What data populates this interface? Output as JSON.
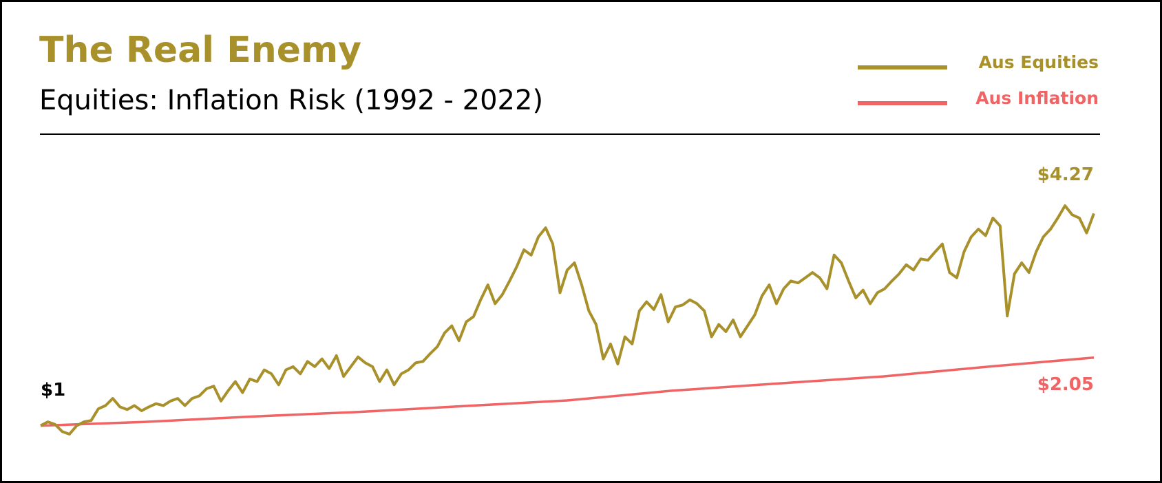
{
  "chart_data": {
    "type": "line",
    "title": "The Real Enemy",
    "subtitle": "Equities: Inflation Risk (1992 - 2022)",
    "start_label": {
      "label": "$1",
      "value": 1
    },
    "series": [
      {
        "name": "Aus Equities",
        "color": "#a8902b",
        "values": [
          1.0,
          1.06,
          1.02,
          0.91,
          0.87,
          1.0,
          1.06,
          1.08,
          1.26,
          1.31,
          1.42,
          1.29,
          1.25,
          1.31,
          1.23,
          1.29,
          1.34,
          1.31,
          1.38,
          1.42,
          1.31,
          1.42,
          1.46,
          1.57,
          1.61,
          1.38,
          1.54,
          1.68,
          1.51,
          1.72,
          1.68,
          1.86,
          1.8,
          1.63,
          1.86,
          1.91,
          1.8,
          1.99,
          1.91,
          2.03,
          1.88,
          2.08,
          1.76,
          1.91,
          2.06,
          1.97,
          1.91,
          1.68,
          1.86,
          1.63,
          1.8,
          1.86,
          1.97,
          1.99,
          2.11,
          2.22,
          2.43,
          2.54,
          2.31,
          2.6,
          2.68,
          2.94,
          3.17,
          2.88,
          3.02,
          3.23,
          3.45,
          3.71,
          3.63,
          3.91,
          4.05,
          3.8,
          3.05,
          3.4,
          3.51,
          3.17,
          2.77,
          2.56,
          2.03,
          2.26,
          1.95,
          2.37,
          2.26,
          2.77,
          2.91,
          2.79,
          3.02,
          2.6,
          2.83,
          2.86,
          2.94,
          2.88,
          2.77,
          2.37,
          2.56,
          2.45,
          2.63,
          2.37,
          2.54,
          2.71,
          3.0,
          3.17,
          2.88,
          3.11,
          3.23,
          3.2,
          3.28,
          3.36,
          3.28,
          3.11,
          3.63,
          3.51,
          3.23,
          2.97,
          3.09,
          2.88,
          3.05,
          3.11,
          3.23,
          3.34,
          3.48,
          3.4,
          3.57,
          3.55,
          3.68,
          3.8,
          3.36,
          3.28,
          3.68,
          3.91,
          4.03,
          3.93,
          4.2,
          4.08,
          2.69,
          3.34,
          3.51,
          3.36,
          3.68,
          3.91,
          4.03,
          4.2,
          4.39,
          4.25,
          4.2,
          3.97,
          4.27
        ],
        "end_label": {
          "label": "$4.27",
          "value": 4.27
        }
      },
      {
        "name": "Aus Inflation",
        "color": "#ef6464",
        "values": [
          1.0,
          1.06,
          1.14,
          1.21,
          1.3,
          1.39,
          1.54,
          1.65,
          1.76,
          1.91,
          2.05
        ],
        "end_label": {
          "label": "$2.05",
          "value": 2.05
        }
      }
    ]
  }
}
